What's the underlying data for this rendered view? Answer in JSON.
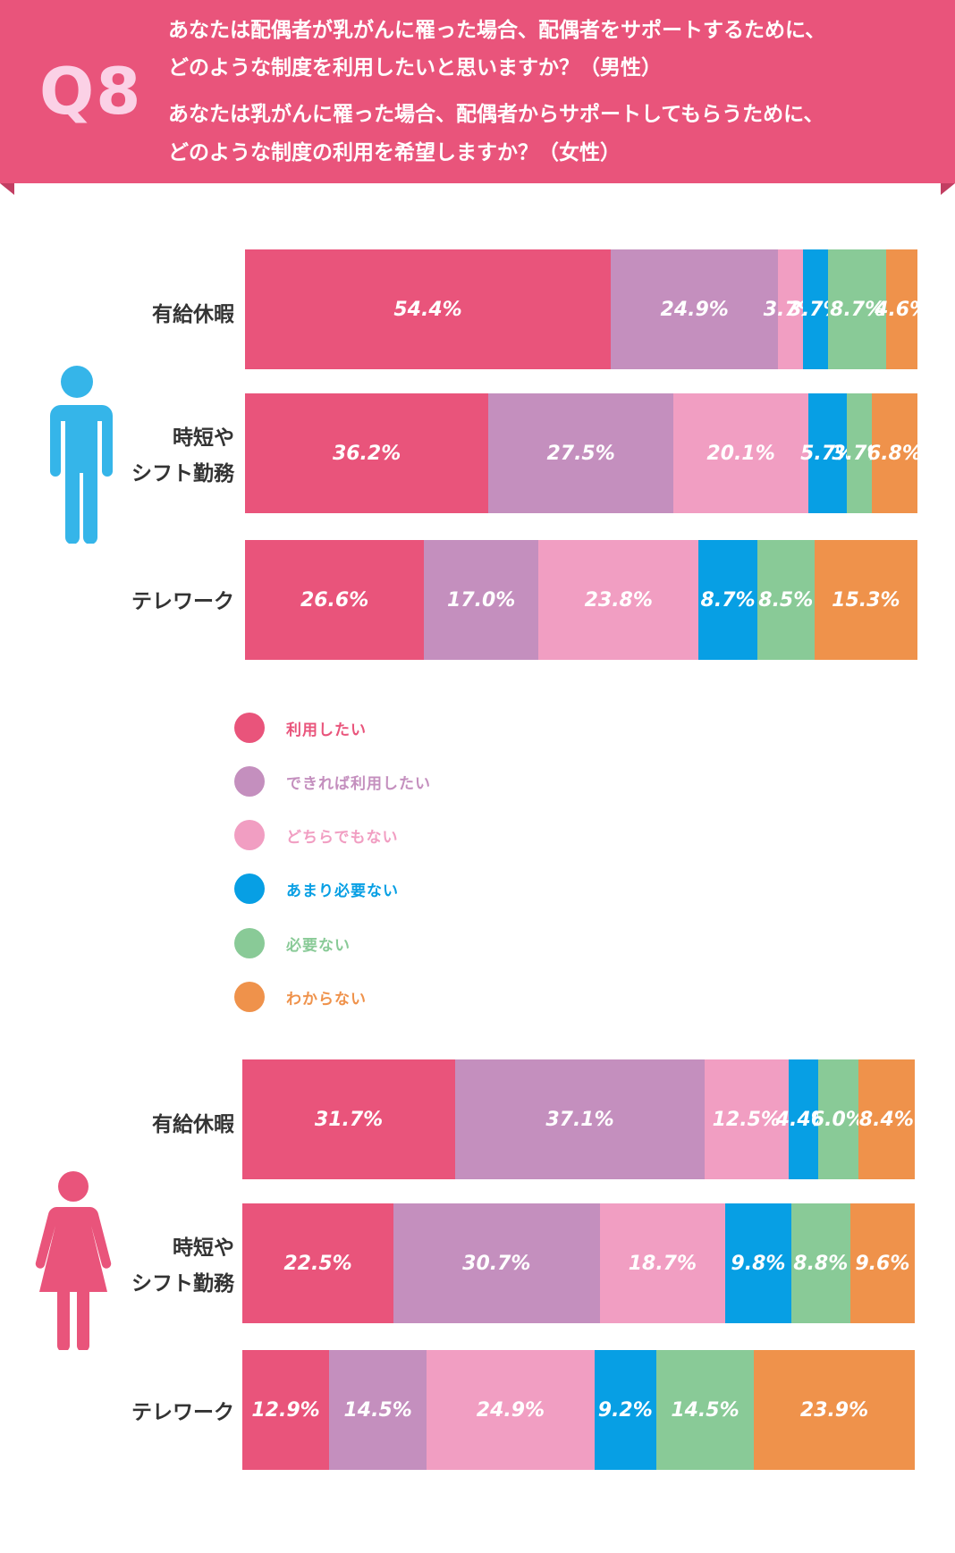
{
  "question": {
    "number": "Q8",
    "line1": "あなたは配偶者が乳がんに罹った場合、配偶者をサポートするために、",
    "line2": "どのような制度を利用したいと思いますか？（男性）",
    "line3": "あなたは乳がんに罹った場合、配偶者からサポートしてもらうために、",
    "line4": "どのような制度の利用を希望しますか？（女性）"
  },
  "colors": {
    "header": "#e9547b",
    "male_icon": "#35b5e9",
    "female_icon": "#e9547b"
  },
  "icons": {
    "male": "male-person-icon",
    "female": "female-person-icon"
  },
  "legend": [
    {
      "label": "利用したい",
      "color": "#e9547b"
    },
    {
      "label": "できれば利用したい",
      "color": "#c48fbe"
    },
    {
      "label": "どちらでもない",
      "color": "#f19ec2"
    },
    {
      "label": "あまり必要ない",
      "color": "#079fe4"
    },
    {
      "label": "必要ない",
      "color": "#89ca97"
    },
    {
      "label": "わからない",
      "color": "#ef924b"
    }
  ],
  "chart_data": [
    {
      "type": "bar",
      "orientation": "horizontal-stacked-100",
      "group": "male",
      "categories": [
        [
          "有給休暇"
        ],
        [
          "時短や",
          "シフト勤務"
        ],
        [
          "テレワーク"
        ]
      ],
      "series": [
        {
          "name": "利用したい",
          "values": [
            54.4,
            36.2,
            26.6
          ]
        },
        {
          "name": "できれば利用したい",
          "values": [
            24.9,
            27.5,
            17.0
          ]
        },
        {
          "name": "どちらでもない",
          "values": [
            3.7,
            20.1,
            23.8
          ]
        },
        {
          "name": "あまり必要ない",
          "values": [
            3.7,
            5.7,
            8.7
          ]
        },
        {
          "name": "必要ない",
          "values": [
            8.7,
            3.7,
            8.5
          ]
        },
        {
          "name": "わからない",
          "values": [
            4.6,
            6.8,
            15.3
          ]
        }
      ],
      "data_labels": [
        [
          "54.4%",
          "24.9%",
          "3.7%",
          "3.7%",
          "8.7%",
          "4.6%"
        ],
        [
          "36.2%",
          "27.5%",
          "20.1%",
          "5.7%",
          "3.7%",
          "6.8%"
        ],
        [
          "26.6%",
          "17.0%",
          "23.8%",
          "8.7%",
          "8.5%",
          "15.3%"
        ]
      ]
    },
    {
      "type": "bar",
      "orientation": "horizontal-stacked-100",
      "group": "female",
      "categories": [
        [
          "有給休暇"
        ],
        [
          "時短や",
          "シフト勤務"
        ],
        [
          "テレワーク"
        ]
      ],
      "series": [
        {
          "name": "利用したい",
          "values": [
            31.7,
            22.5,
            12.9
          ]
        },
        {
          "name": "できれば利用したい",
          "values": [
            37.1,
            30.7,
            14.5
          ]
        },
        {
          "name": "どちらでもない",
          "values": [
            12.5,
            18.7,
            24.9
          ]
        },
        {
          "name": "あまり必要ない",
          "values": [
            4.4,
            9.8,
            9.2
          ]
        },
        {
          "name": "必要ない",
          "values": [
            6.0,
            8.8,
            14.5
          ]
        },
        {
          "name": "わからない",
          "values": [
            8.4,
            9.6,
            23.9
          ]
        }
      ],
      "data_labels": [
        [
          "31.7%",
          "37.1%",
          "12.5%",
          "4.4%",
          "6.0%",
          "8.4%"
        ],
        [
          "22.5%",
          "30.7%",
          "18.7%",
          "9.8%",
          "8.8%",
          "9.6%"
        ],
        [
          "12.9%",
          "14.5%",
          "24.9%",
          "9.2%",
          "14.5%",
          "23.9%"
        ]
      ]
    }
  ]
}
